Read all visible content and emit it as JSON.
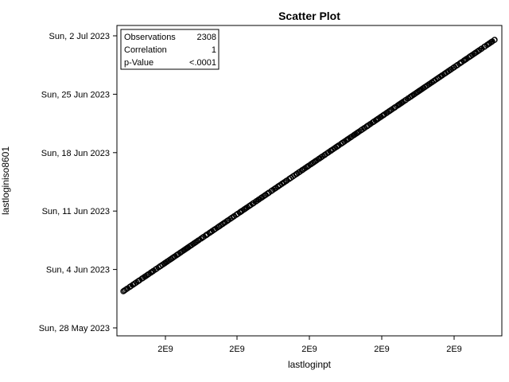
{
  "chart_data": {
    "type": "scatter",
    "title": "Scatter Plot",
    "xlabel": "lastloginpt",
    "ylabel": "lastloginiso8601",
    "x_tick_labels": [
      "2E9",
      "2E9",
      "2E9",
      "2E9",
      "2E9"
    ],
    "y_tick_labels": [
      "Sun, 28 May 2023",
      "Sun, 4 Jun 2023",
      "Sun, 11 Jun 2023",
      "Sun, 18 Jun 2023",
      "Sun, 25 Jun 2023",
      "Sun, 2 Jul 2023"
    ],
    "y_range_days": [
      "2023-05-28",
      "2023-07-02"
    ],
    "data_range": {
      "start": "2023-05-31",
      "end": "2023-07-02"
    },
    "observations": 2308,
    "grid": false,
    "marker": "open-circle",
    "color": "#000000",
    "stats": [
      {
        "label": "Observations",
        "value": "2308"
      },
      {
        "label": "Correlation",
        "value": "1"
      },
      {
        "label": "p-Value",
        "value": "<.0001"
      }
    ]
  }
}
